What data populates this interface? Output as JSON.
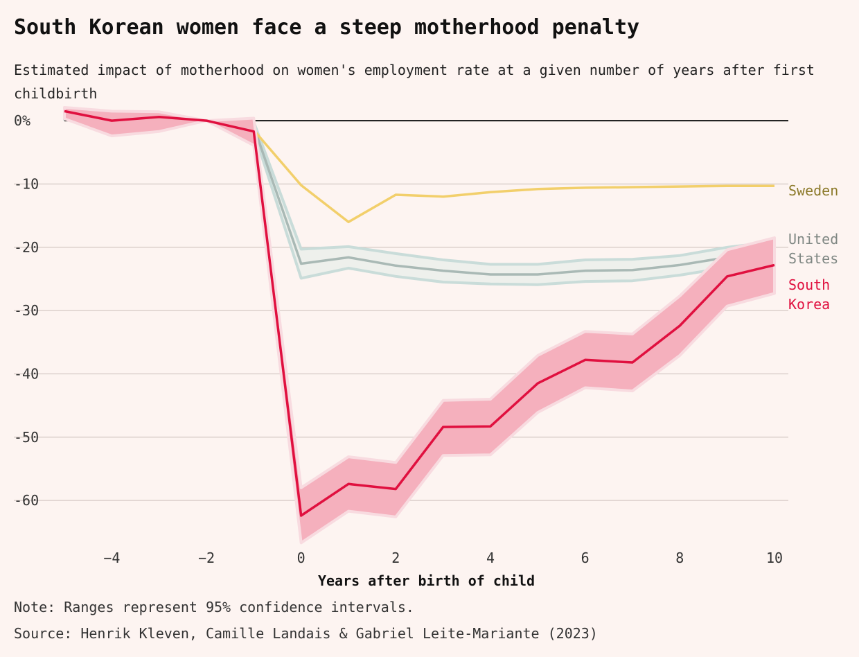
{
  "title": "South Korean women face a steep motherhood penalty",
  "subtitle": "Estimated impact of motherhood on women's employment rate at a given number of years after first childbirth",
  "note": "Note: Ranges represent 95% confidence intervals.",
  "source": "Source: Henrik Kleven, Camille Landais & Gabriel Leite-Mariante (2023)",
  "chart_data": {
    "type": "line",
    "xlabel": "Years after birth of child",
    "ylabel": "",
    "xlim": [
      -5,
      10
    ],
    "ylim": [
      -67,
      1
    ],
    "x_ticks": [
      -4,
      -2,
      0,
      2,
      4,
      6,
      8,
      10
    ],
    "y_ticks": [
      0,
      -10,
      -20,
      -30,
      -40,
      -50,
      -60
    ],
    "y_tick_labels": [
      "0%",
      "-10",
      "-20",
      "-30",
      "-40",
      "-50",
      "-60"
    ],
    "x": [
      -5,
      -4,
      -3,
      -2,
      -1,
      0,
      1,
      2,
      3,
      4,
      5,
      6,
      7,
      8,
      9,
      10
    ],
    "series": [
      {
        "name": "Sweden",
        "color": "#f2cf6b",
        "label_color": "#8c7a2a",
        "values": [
          0.5,
          1.0,
          0.9,
          0.0,
          -1.5,
          -10.2,
          -16.0,
          -11.7,
          -12.0,
          -11.3,
          -10.8,
          -10.6,
          -10.5,
          -10.4,
          -10.3,
          -10.3
        ]
      },
      {
        "name": "United States",
        "color": "#a9b9b5",
        "band_color": "#c9dcd9",
        "label_color": "#7f8783",
        "values": [
          0.8,
          0.8,
          0.6,
          0.0,
          -0.9,
          -22.6,
          -21.6,
          -22.9,
          -23.7,
          -24.3,
          -24.3,
          -23.7,
          -23.6,
          -22.8,
          -21.6,
          -20.7
        ],
        "lower": [
          0.2,
          0.3,
          0.1,
          0.0,
          -1.7,
          -24.9,
          -23.3,
          -24.6,
          -25.5,
          -25.8,
          -25.9,
          -25.4,
          -25.3,
          -24.4,
          -23.2,
          -22.3
        ],
        "upper": [
          1.3,
          1.3,
          1.1,
          0.0,
          -0.2,
          -20.3,
          -19.9,
          -21.0,
          -22.0,
          -22.7,
          -22.7,
          -22.0,
          -21.9,
          -21.3,
          -20.0,
          -19.1
        ]
      },
      {
        "name": "South Korea",
        "color": "#e0103f",
        "band_color": "#f5b0bd",
        "label_color": "#e0103f",
        "values": [
          1.5,
          0.0,
          0.6,
          0.0,
          -1.7,
          -62.4,
          -57.4,
          -58.2,
          -48.4,
          -48.3,
          -41.5,
          -37.8,
          -38.2,
          -32.4,
          -24.6,
          -22.8
        ],
        "lower": [
          0.3,
          -2.4,
          -1.7,
          0.0,
          -3.9,
          -66.7,
          -61.7,
          -62.6,
          -52.9,
          -52.8,
          -46.1,
          -42.2,
          -42.7,
          -37.1,
          -29.3,
          -27.3
        ],
        "upper": [
          2.1,
          1.5,
          1.4,
          0.0,
          0.4,
          -58.0,
          -53.1,
          -54.0,
          -44.2,
          -44.0,
          -37.1,
          -33.3,
          -33.7,
          -27.7,
          -20.4,
          -18.5
        ]
      }
    ]
  }
}
